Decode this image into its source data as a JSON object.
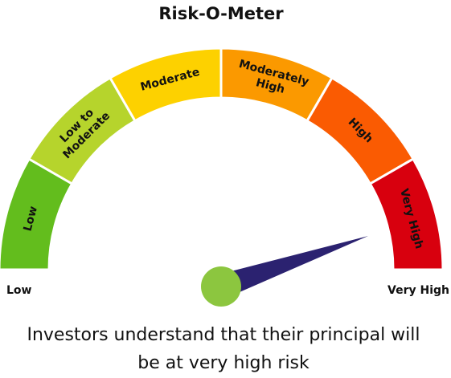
{
  "title": "Risk-O-Meter",
  "segments": [
    {
      "lines": [
        "Low"
      ],
      "color": "#63bd1d"
    },
    {
      "lines": [
        "Low to",
        "Moderate"
      ],
      "color": "#b6d42c"
    },
    {
      "lines": [
        "Moderate"
      ],
      "color": "#fdd100"
    },
    {
      "lines": [
        "Moderately",
        "High"
      ],
      "color": "#fb9900"
    },
    {
      "lines": [
        "High"
      ],
      "color": "#fa5b02"
    },
    {
      "lines": [
        "Very High"
      ],
      "color": "#d8000e"
    }
  ],
  "scale_labels": {
    "left": "Low",
    "right": "Very High"
  },
  "caption": [
    "Investors understand that their principal will",
    "be at very high risk"
  ]
}
